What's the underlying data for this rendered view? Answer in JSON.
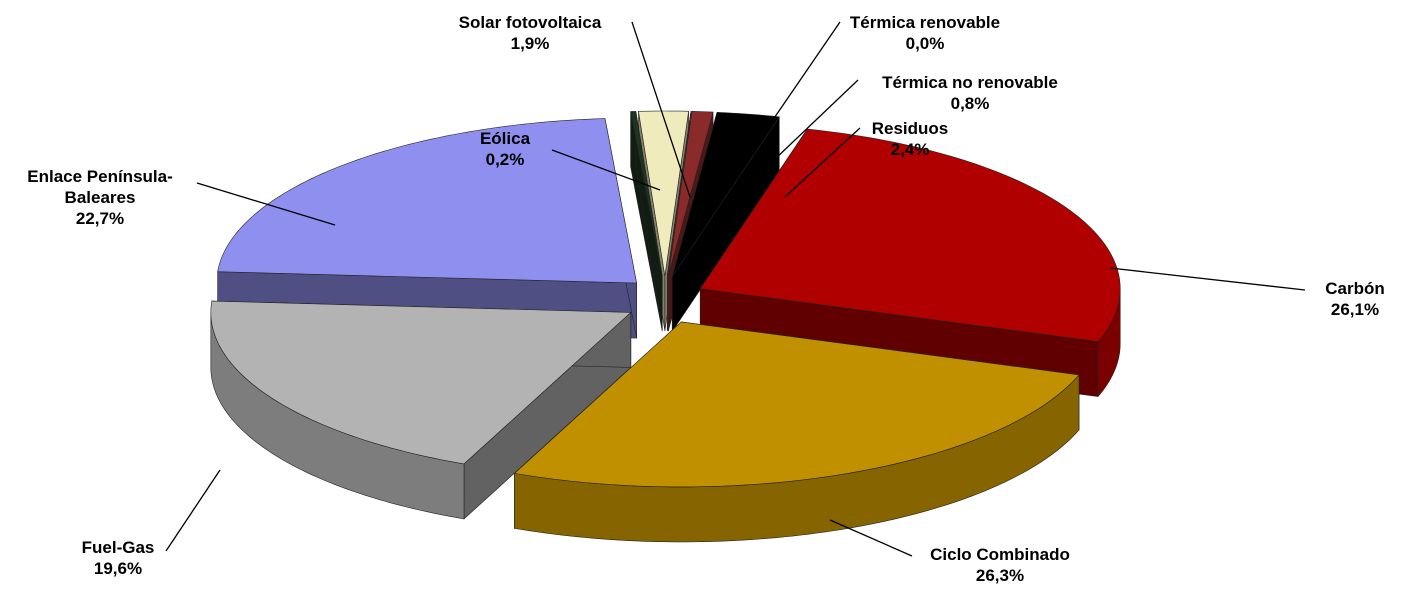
{
  "chart_data": {
    "type": "pie",
    "categories": [
      "Eólica",
      "Solar fotovoltaica",
      "Térmica renovable",
      "Térmica no renovable",
      "Residuos",
      "Carbón",
      "Ciclo Combinado",
      "Fuel-Gas",
      "Enlace Península-Baleares"
    ],
    "values": [
      0.2,
      1.9,
      0.0,
      0.8,
      2.4,
      26.1,
      26.3,
      19.6,
      22.7
    ],
    "value_labels": [
      "0,2%",
      "1,9%",
      "0,0%",
      "0,8%",
      "2,4%",
      "26,1%",
      "26,3%",
      "19,6%",
      "22,7%"
    ],
    "colors": [
      "#1e3320",
      "#efebbd",
      "#c05050",
      "#8b2a2a",
      "#000000",
      "#b00000",
      "#c09000",
      "#b3b3b3",
      "#8f8fef"
    ]
  }
}
